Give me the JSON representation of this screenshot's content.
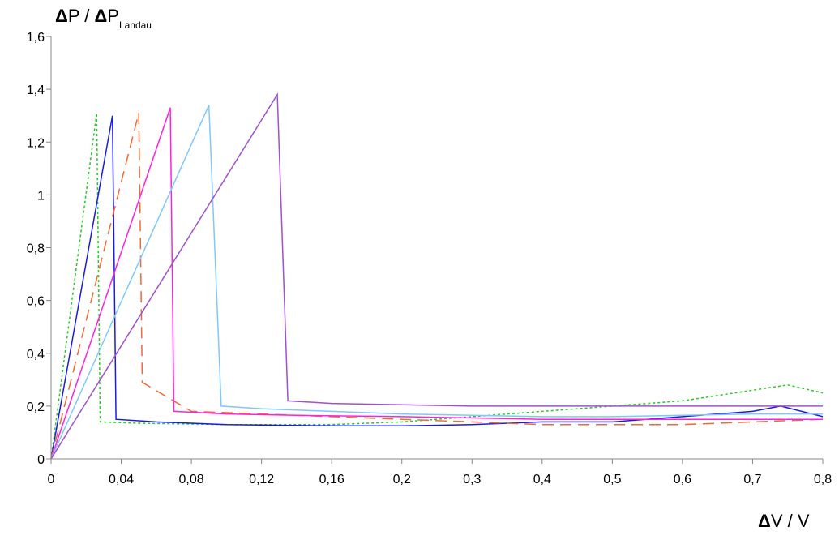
{
  "chart_data": {
    "type": "line",
    "ylabel": {
      "prefix": "P / ",
      "var": "P",
      "subscript": "Landau"
    },
    "xlabel": {
      "text": "V / V"
    },
    "ylim": [
      0,
      1.6
    ],
    "y_ticks": [
      "0",
      "0,2",
      "0,4",
      "0,6",
      "0,8",
      "1",
      "1,2",
      "1,4",
      "1,6"
    ],
    "x_ticks": [
      "0",
      "0,04",
      "0,08",
      "0,12",
      "0,16",
      "0,2",
      "0,3",
      "0,4",
      "0,5",
      "0,6",
      "0,7",
      "0,8"
    ],
    "grid": false,
    "series": [
      {
        "color": "#22cc22",
        "dash": "3,3",
        "x": [
          0,
          0.026,
          0.028,
          0.05,
          0.1,
          0.16,
          0.2,
          0.3,
          0.4,
          0.5,
          0.6,
          0.7,
          0.75,
          0.8
        ],
        "y": [
          0,
          1.31,
          0.14,
          0.135,
          0.13,
          0.13,
          0.14,
          0.16,
          0.18,
          0.2,
          0.22,
          0.26,
          0.28,
          0.25
        ]
      },
      {
        "color": "#1a1ae6",
        "dash": "",
        "x": [
          0,
          0.035,
          0.037,
          0.06,
          0.1,
          0.16,
          0.2,
          0.3,
          0.4,
          0.5,
          0.6,
          0.7,
          0.74,
          0.8
        ],
        "y": [
          0,
          1.3,
          0.15,
          0.14,
          0.13,
          0.125,
          0.125,
          0.13,
          0.14,
          0.14,
          0.16,
          0.18,
          0.2,
          0.16
        ]
      },
      {
        "color": "#f06a35",
        "dash": "14,8",
        "x": [
          0,
          0.05,
          0.052,
          0.08,
          0.12,
          0.16,
          0.2,
          0.3,
          0.4,
          0.5,
          0.6,
          0.7,
          0.8
        ],
        "y": [
          0,
          1.31,
          0.29,
          0.18,
          0.17,
          0.16,
          0.15,
          0.14,
          0.13,
          0.13,
          0.13,
          0.14,
          0.15
        ]
      },
      {
        "color": "#ff22dd",
        "dash": "",
        "x": [
          0,
          0.068,
          0.07,
          0.1,
          0.14,
          0.2,
          0.3,
          0.4,
          0.5,
          0.6,
          0.7,
          0.8
        ],
        "y": [
          0,
          1.33,
          0.18,
          0.17,
          0.165,
          0.16,
          0.155,
          0.15,
          0.15,
          0.15,
          0.15,
          0.15
        ]
      },
      {
        "color": "#7fc8ff",
        "dash": "",
        "x": [
          0,
          0.09,
          0.097,
          0.12,
          0.16,
          0.2,
          0.3,
          0.4,
          0.5,
          0.6,
          0.7,
          0.8
        ],
        "y": [
          0,
          1.34,
          0.2,
          0.19,
          0.18,
          0.17,
          0.165,
          0.16,
          0.16,
          0.165,
          0.17,
          0.17
        ]
      },
      {
        "color": "#a050d0",
        "dash": "",
        "x": [
          0,
          0.129,
          0.135,
          0.16,
          0.2,
          0.3,
          0.4,
          0.5,
          0.6,
          0.7,
          0.8
        ],
        "y": [
          0,
          1.38,
          0.22,
          0.21,
          0.205,
          0.2,
          0.2,
          0.2,
          0.2,
          0.2,
          0.2
        ]
      }
    ]
  }
}
